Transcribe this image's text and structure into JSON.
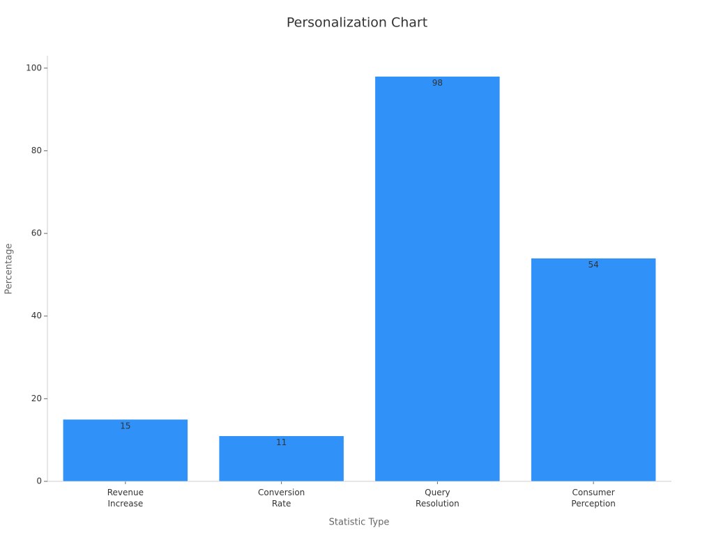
{
  "chart_data": {
    "type": "bar",
    "title": "Personalization Chart",
    "x_label": "Statistic Type",
    "y_label": "Percentage",
    "categories": [
      "Revenue Increase",
      "Conversion Rate",
      "Query Resolution",
      "Consumer Perception"
    ],
    "values": [
      15,
      11,
      98,
      54
    ],
    "color": "#3091f9",
    "ylim": [
      0,
      103
    ],
    "yticks": [
      0,
      20,
      40,
      60,
      80,
      100
    ],
    "grid": false
  }
}
